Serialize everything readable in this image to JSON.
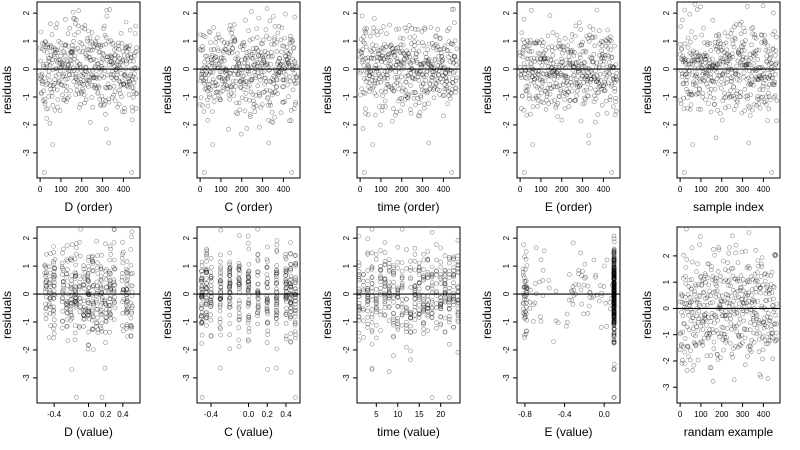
{
  "figure": {
    "rows": 2,
    "cols": 5
  },
  "chart_data": [
    {
      "type": "scatter",
      "panel": "1",
      "xlabel": "D (order)",
      "ylabel": "residuals",
      "xlim": [
        -15,
        480
      ],
      "ylim": [
        -3.9,
        2.4
      ],
      "xticks": [
        0,
        100,
        200,
        300,
        400
      ],
      "xtick_labels": [
        "0",
        "100",
        "200",
        "300",
        "400"
      ],
      "yticks": [
        -3,
        -2,
        -1,
        0,
        1,
        2
      ],
      "ytick_labels": [
        "-3",
        "-2",
        "-1",
        "0",
        "1",
        "2"
      ],
      "reference_line": 0,
      "n_points": 466
    },
    {
      "type": "scatter",
      "panel": "2",
      "xlabel": "C (order)",
      "ylabel": "residuals",
      "xlim": [
        -15,
        480
      ],
      "ylim": [
        -3.9,
        2.4
      ],
      "xticks": [
        0,
        100,
        200,
        300,
        400
      ],
      "xtick_labels": [
        "0",
        "100",
        "200",
        "300",
        "400"
      ],
      "yticks": [
        -3,
        -2,
        -1,
        0,
        1,
        2
      ],
      "ytick_labels": [
        "-3",
        "-2",
        "-1",
        "0",
        "1",
        "2"
      ],
      "reference_line": 0,
      "n_points": 466
    },
    {
      "type": "scatter",
      "panel": "3",
      "xlabel": "time (order)",
      "ylabel": "residuals",
      "xlim": [
        -15,
        480
      ],
      "ylim": [
        -3.9,
        2.4
      ],
      "xticks": [
        0,
        100,
        200,
        300,
        400
      ],
      "xtick_labels": [
        "0",
        "100",
        "200",
        "300",
        "400"
      ],
      "yticks": [
        -3,
        -2,
        -1,
        0,
        1,
        2
      ],
      "ytick_labels": [
        "-3",
        "-2",
        "-1",
        "0",
        "1",
        "2"
      ],
      "reference_line": 0,
      "n_points": 466
    },
    {
      "type": "scatter",
      "panel": "4",
      "xlabel": "E (order)",
      "ylabel": "residuals",
      "xlim": [
        -15,
        480
      ],
      "ylim": [
        -3.9,
        2.4
      ],
      "xticks": [
        0,
        100,
        200,
        300,
        400
      ],
      "xtick_labels": [
        "0",
        "100",
        "200",
        "300",
        "400"
      ],
      "yticks": [
        -3,
        -2,
        -1,
        0,
        1,
        2
      ],
      "ytick_labels": [
        "-3",
        "-2",
        "-1",
        "0",
        "1",
        "2"
      ],
      "reference_line": 0,
      "n_points": 466
    },
    {
      "type": "scatter",
      "panel": "5",
      "xlabel": "sample index",
      "ylabel": "residuals",
      "xlim": [
        -15,
        480
      ],
      "ylim": [
        -3.9,
        2.4
      ],
      "xticks": [
        0,
        100,
        200,
        300,
        400
      ],
      "xtick_labels": [
        "0",
        "100",
        "200",
        "300",
        "400"
      ],
      "yticks": [
        -3,
        -2,
        -1,
        0,
        1,
        2
      ],
      "ytick_labels": [
        "-3",
        "-2",
        "-1",
        "0",
        "1",
        "2"
      ],
      "reference_line": 0,
      "n_points": 466
    },
    {
      "type": "scatter",
      "panel": "6",
      "xlabel": "D (value)",
      "ylabel": "residuals",
      "xlim": [
        -0.6,
        0.6
      ],
      "ylim": [
        -3.9,
        2.4
      ],
      "xticks": [
        -0.4,
        0,
        0.2,
        0.4
      ],
      "xtick_labels": [
        "-0.4",
        "0.0",
        "0.2",
        "0.4"
      ],
      "yticks": [
        -3,
        -2,
        -1,
        0,
        1,
        2
      ],
      "ytick_labels": [
        "-3",
        "-2",
        "-1",
        "0",
        "1",
        "2"
      ],
      "reference_line": 0,
      "n_points": 466
    },
    {
      "type": "scatter",
      "panel": "7",
      "xlabel": "C (value)",
      "ylabel": "residuals",
      "xlim": [
        -0.55,
        0.55
      ],
      "ylim": [
        -3.9,
        2.4
      ],
      "xticks": [
        -0.4,
        0,
        0.2,
        0.4
      ],
      "xtick_labels": [
        "-0.4",
        "0.0",
        "0.2",
        "0.4"
      ],
      "yticks": [
        -3,
        -2,
        -1,
        0,
        1,
        2
      ],
      "ytick_labels": [
        "-3",
        "-2",
        "-1",
        "0",
        "1",
        "2"
      ],
      "reference_line": 0,
      "n_points": 466
    },
    {
      "type": "scatter",
      "panel": "8",
      "xlabel": "time (value)",
      "ylabel": "residuals",
      "xlim": [
        0.5,
        24.5
      ],
      "ylim": [
        -3.9,
        2.4
      ],
      "xticks": [
        5,
        10,
        15,
        20
      ],
      "xtick_labels": [
        "5",
        "10",
        "15",
        "20"
      ],
      "yticks": [
        -3,
        -2,
        -1,
        0,
        1,
        2
      ],
      "ytick_labels": [
        "-3",
        "-2",
        "-1",
        "0",
        "1",
        "2"
      ],
      "reference_line": 0,
      "n_points": 466
    },
    {
      "type": "scatter",
      "panel": "9",
      "xlabel": "E (value)",
      "ylabel": "residuals",
      "xlim": [
        -0.88,
        0.16
      ],
      "ylim": [
        -3.9,
        2.4
      ],
      "xticks": [
        -0.8,
        -0.4,
        0
      ],
      "xtick_labels": [
        "-0.8",
        "-0.4",
        "0.0"
      ],
      "yticks": [
        -3,
        -2,
        -1,
        0,
        1,
        2
      ],
      "ytick_labels": [
        "-3",
        "-2",
        "-1",
        "0",
        "1",
        "2"
      ],
      "reference_line": 0,
      "n_points": 466
    },
    {
      "type": "scatter",
      "panel": "10",
      "xlabel": "randam example",
      "ylabel": "residuals",
      "xlim": [
        -15,
        480
      ],
      "ylim": [
        -3.6,
        3.1
      ],
      "xticks": [
        0,
        100,
        200,
        300,
        400
      ],
      "xtick_labels": [
        "0",
        "100",
        "200",
        "300",
        "400"
      ],
      "yticks": [
        -3,
        -2,
        -1,
        0,
        1,
        2
      ],
      "ytick_labels": [
        "-3",
        "-2",
        "-1",
        "0",
        "1",
        "2"
      ],
      "reference_line": 0,
      "n_points": 466
    }
  ],
  "style": {
    "point_color": "#000000",
    "point_opacity": 0.45,
    "axis_color": "#000000"
  }
}
